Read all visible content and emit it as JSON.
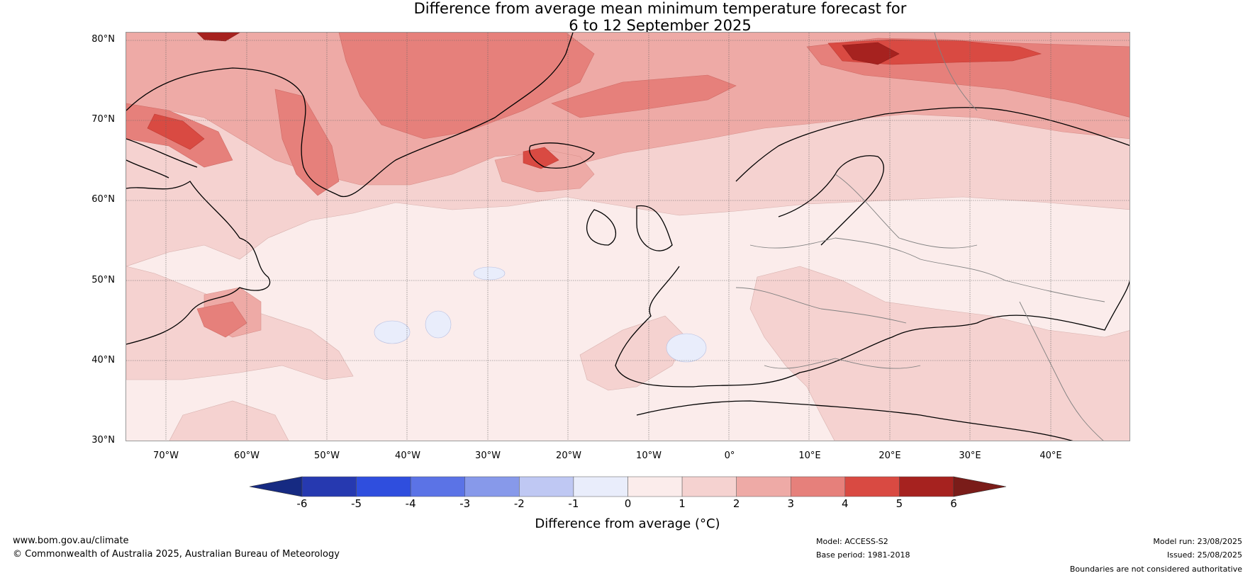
{
  "title": {
    "line1": "Difference from average mean minimum temperature forecast for",
    "line2": "6 to 12 September 2025"
  },
  "map": {
    "latitude_labels": [
      "80°N",
      "70°N",
      "60°N",
      "50°N",
      "40°N",
      "30°N"
    ],
    "longitude_labels": [
      "70°W",
      "60°W",
      "50°W",
      "40°W",
      "30°W",
      "20°W",
      "10°W",
      "0°",
      "10°E",
      "20°E",
      "30°E",
      "40°E"
    ],
    "lat_range": [
      30,
      81
    ],
    "lon_range": [
      -75,
      50
    ],
    "icons": [
      "europe-coastline",
      "greenland-coastline",
      "north-america-coastline",
      "iceland-coastline",
      "country-borders"
    ]
  },
  "colorbar": {
    "ticks": [
      "-6",
      "-5",
      "-4",
      "-3",
      "-2",
      "-1",
      "0",
      "1",
      "2",
      "3",
      "4",
      "5",
      "6"
    ],
    "colors": [
      "#162a82",
      "#2639b0",
      "#2f4ede",
      "#5b73e6",
      "#8799ea",
      "#bfc8f3",
      "#e9edfb",
      "#fbeceb",
      "#f5d2d0",
      "#eeaaa6",
      "#e6807b",
      "#d94a42",
      "#a6221f",
      "#7a1c19"
    ],
    "label": "Difference from average (°C)"
  },
  "footer": {
    "website": "www.bom.gov.au/climate",
    "copyright": "© Commonwealth of Australia 2025, Australian Bureau of Meteorology",
    "model": "Model: ACCESS-S2",
    "base_period": "Base period: 1981-2018",
    "model_run": "Model run: 23/08/2025",
    "issued": "Issued: 25/08/2025",
    "boundaries": "Boundaries are not considered authoritative"
  }
}
